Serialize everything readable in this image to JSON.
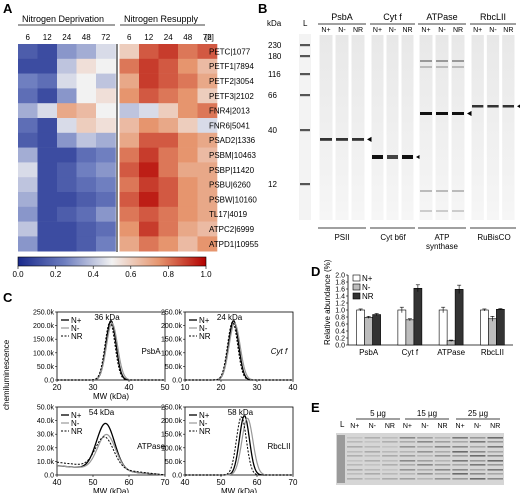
{
  "panel_labels": {
    "A": "A",
    "B": "B",
    "C": "C",
    "D": "D",
    "E": "E"
  },
  "panelA": {
    "group_left": "Nitrogen Deprivation",
    "group_right": "Nitrogen Resupply",
    "time_unit": "[h]",
    "times_left": [
      "6",
      "12",
      "24",
      "48",
      "72"
    ],
    "times_right": [
      "6",
      "12",
      "24",
      "48",
      "72"
    ],
    "genes": [
      "PETC|1077",
      "PETF1|7894",
      "PETF2|3054",
      "PETF3|2102",
      "FNR4|2013",
      "FNR6|5041",
      "PSAD2|1336",
      "PSBM|10463",
      "PSBP|11420",
      "PSBU|6260",
      "PSBW|10160",
      "TL17|4019",
      "ATPC2|6999",
      "ATPD1|10955"
    ],
    "heat": [
      [
        0.15,
        0.1,
        0.3,
        0.35,
        0.45,
        0.6,
        0.85,
        0.9,
        0.8,
        0.85
      ],
      [
        0.1,
        0.1,
        0.4,
        0.55,
        0.5,
        0.8,
        0.9,
        0.85,
        0.75,
        0.65
      ],
      [
        0.25,
        0.2,
        0.45,
        0.5,
        0.4,
        0.7,
        0.9,
        0.85,
        0.8,
        0.7
      ],
      [
        0.2,
        0.1,
        0.3,
        0.5,
        0.55,
        0.75,
        0.85,
        0.8,
        0.75,
        0.6
      ],
      [
        0.35,
        0.45,
        0.7,
        0.65,
        0.5,
        0.4,
        0.45,
        0.6,
        0.75,
        0.8
      ],
      [
        0.2,
        0.1,
        0.45,
        0.6,
        0.55,
        0.65,
        0.75,
        0.7,
        0.6,
        0.45
      ],
      [
        0.15,
        0.1,
        0.3,
        0.4,
        0.35,
        0.7,
        0.85,
        0.85,
        0.75,
        0.7
      ],
      [
        0.35,
        0.1,
        0.1,
        0.2,
        0.25,
        0.8,
        0.9,
        0.8,
        0.75,
        0.65
      ],
      [
        0.45,
        0.1,
        0.15,
        0.25,
        0.3,
        0.85,
        0.95,
        0.8,
        0.7,
        0.7
      ],
      [
        0.4,
        0.1,
        0.15,
        0.2,
        0.25,
        0.8,
        0.9,
        0.85,
        0.75,
        0.7
      ],
      [
        0.35,
        0.1,
        0.1,
        0.15,
        0.2,
        0.85,
        0.95,
        0.85,
        0.75,
        0.7
      ],
      [
        0.3,
        0.1,
        0.15,
        0.2,
        0.3,
        0.8,
        0.85,
        0.8,
        0.75,
        0.7
      ],
      [
        0.4,
        0.1,
        0.1,
        0.15,
        0.2,
        0.75,
        0.9,
        0.8,
        0.7,
        0.65
      ],
      [
        0.3,
        0.1,
        0.1,
        0.15,
        0.25,
        0.7,
        0.8,
        0.75,
        0.65,
        0.75
      ]
    ],
    "colorbar_ticks": [
      "0.0",
      "0.2",
      "0.4",
      "0.6",
      "0.8",
      "1.0"
    ]
  },
  "panelB": {
    "kda_label": "kDa",
    "ladder_label": "L",
    "markers": [
      "230",
      "180",
      "116",
      "66",
      "40",
      "12"
    ],
    "proteins": [
      "PsbA",
      "Cyt f",
      "ATPase",
      "RbcLII"
    ],
    "lanes": [
      "N+",
      "N-",
      "NR"
    ],
    "complexes": [
      "PSII",
      "Cyt b6f",
      "ATP",
      "synthase",
      "RuBisCO"
    ]
  },
  "panelC": {
    "y_axis_label": "chemiluminescence",
    "x_axis_label": "MW (kDa)",
    "legend": [
      "N+",
      "N-",
      "NR"
    ],
    "plots": [
      {
        "title": "36 kDa",
        "protein": "PsbA",
        "yticks": [
          "0.0",
          "50.0k",
          "100.0k",
          "150.0k",
          "200.0k",
          "250.0k"
        ],
        "xticks": [
          "20",
          "30",
          "40",
          "50"
        ]
      },
      {
        "title": "24 kDa",
        "protein": "Cyt f",
        "yticks": [
          "0.0",
          "50.0k",
          "100.0k",
          "150.0k",
          "200.0k",
          "250.0k"
        ],
        "xticks": [
          "10",
          "20",
          "30",
          "40"
        ]
      },
      {
        "title": "54 kDa",
        "protein": "ATPase",
        "yticks": [
          "0.0",
          "10.0k",
          "20.0k",
          "30.0k",
          "40.0k",
          "50.0k"
        ],
        "xticks": [
          "40",
          "50",
          "60",
          "70"
        ]
      },
      {
        "title": "58 kDa",
        "protein": "RbcLII",
        "yticks": [
          "0.0",
          "50.0k",
          "100.0k",
          "150.0k",
          "200.0k",
          "250.0k"
        ],
        "xticks": [
          "40",
          "50",
          "60",
          "70"
        ]
      }
    ]
  },
  "chart_data": {
    "type": "bar",
    "ylabel": "Relative abundance (%)",
    "categories": [
      "PsbA",
      "Cyt f",
      "ATPase",
      "RbcLII"
    ],
    "series": [
      {
        "name": "N+",
        "values": [
          1.0,
          1.0,
          1.0,
          1.0
        ],
        "errors": [
          0.03,
          0.08,
          0.08,
          0.03
        ]
      },
      {
        "name": "N-",
        "values": [
          0.79,
          0.72,
          0.12,
          0.75
        ],
        "errors": [
          0.03,
          0.03,
          0.02,
          0.07
        ]
      },
      {
        "name": "NR",
        "values": [
          0.87,
          1.62,
          1.59,
          1.02
        ],
        "errors": [
          0.03,
          0.1,
          0.12,
          0.02
        ]
      }
    ],
    "ylim": [
      0,
      2.0
    ],
    "yticks": [
      "0.0",
      "0.2",
      "0.4",
      "0.6",
      "0.8",
      "1.0",
      "1.2",
      "1.4",
      "1.6",
      "1.8",
      "2.0"
    ],
    "legend_position": "top-left"
  },
  "panelE": {
    "amounts": [
      "5 µg",
      "15 µg",
      "25 µg"
    ],
    "ladder_label": "L",
    "lanes": [
      "N+",
      "N-",
      "NR",
      "N+",
      "N-",
      "NR",
      "N+",
      "N-",
      "NR"
    ]
  }
}
